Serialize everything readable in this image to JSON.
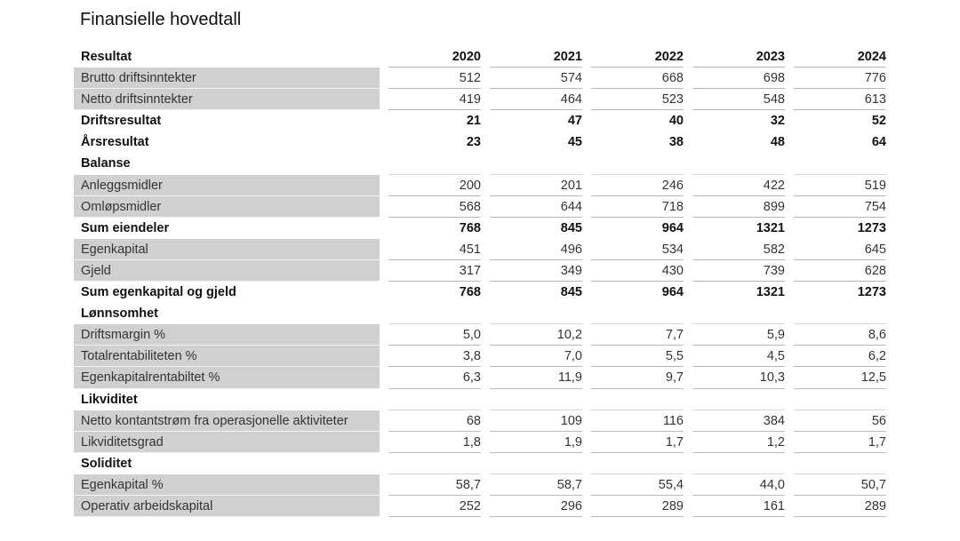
{
  "title": "Finansielle hovedtall",
  "header": {
    "label": "Resultat",
    "years": [
      "2020",
      "2021",
      "2022",
      "2023",
      "2024"
    ]
  },
  "rows": [
    {
      "type": "data",
      "label": "Brutto driftsinntekter",
      "values": [
        "512",
        "574",
        "668",
        "698",
        "776"
      ]
    },
    {
      "type": "data",
      "label": "Netto driftsinntekter",
      "values": [
        "419",
        "464",
        "523",
        "548",
        "613"
      ]
    },
    {
      "type": "bold",
      "label": "Driftsresultat",
      "values": [
        "21",
        "47",
        "40",
        "32",
        "52"
      ]
    },
    {
      "type": "bold",
      "label": "Årsresultat",
      "values": [
        "23",
        "45",
        "38",
        "48",
        "64"
      ]
    },
    {
      "type": "section",
      "label": "Balanse",
      "values": [
        "",
        "",
        "",
        "",
        ""
      ]
    },
    {
      "type": "data",
      "label": "Anleggsmidler",
      "values": [
        "200",
        "201",
        "246",
        "422",
        "519"
      ]
    },
    {
      "type": "data",
      "label": "Omløpsmidler",
      "values": [
        "568",
        "644",
        "718",
        "899",
        "754"
      ]
    },
    {
      "type": "bold",
      "label": "Sum eiendeler",
      "values": [
        "768",
        "845",
        "964",
        "1321",
        "1273"
      ]
    },
    {
      "type": "data",
      "label": "Egenkapital",
      "values": [
        "451",
        "496",
        "534",
        "582",
        "645"
      ]
    },
    {
      "type": "data",
      "label": "Gjeld",
      "values": [
        "317",
        "349",
        "430",
        "739",
        "628"
      ]
    },
    {
      "type": "bold",
      "label": "Sum egenkapital og gjeld",
      "values": [
        "768",
        "845",
        "964",
        "1321",
        "1273"
      ]
    },
    {
      "type": "section",
      "label": "Lønnsomhet",
      "values": [
        "",
        "",
        "",
        "",
        ""
      ]
    },
    {
      "type": "data",
      "label": "Driftsmargin %",
      "values": [
        "5,0",
        "10,2",
        "7,7",
        "5,9",
        "8,6"
      ]
    },
    {
      "type": "data",
      "label": "Totalrentabiliteten %",
      "values": [
        "3,8",
        "7,0",
        "5,5",
        "4,5",
        "6,2"
      ]
    },
    {
      "type": "data",
      "label": "Egenkapitalrentabiltet %",
      "values": [
        "6,3",
        "11,9",
        "9,7",
        "10,3",
        "12,5"
      ]
    },
    {
      "type": "section",
      "label": "Likviditet",
      "values": [
        "",
        "",
        "",
        "",
        ""
      ]
    },
    {
      "type": "data",
      "label": "Netto kontantstrøm fra operasjonelle aktiviteter",
      "values": [
        "68",
        "109",
        "116",
        "384",
        "56"
      ]
    },
    {
      "type": "data",
      "label": "Likviditetsgrad",
      "values": [
        "1,8",
        "1,9",
        "1,7",
        "1,2",
        "1,7"
      ]
    },
    {
      "type": "section",
      "label": "Soliditet",
      "values": [
        "",
        "",
        "",
        "",
        ""
      ]
    },
    {
      "type": "data",
      "label": "Egenkapital %",
      "values": [
        "58,7",
        "58,7",
        "55,4",
        "44,0",
        "50,7"
      ]
    },
    {
      "type": "data",
      "label": "Operativ arbeidskapital",
      "values": [
        "252",
        "296",
        "289",
        "161",
        "289"
      ]
    }
  ]
}
